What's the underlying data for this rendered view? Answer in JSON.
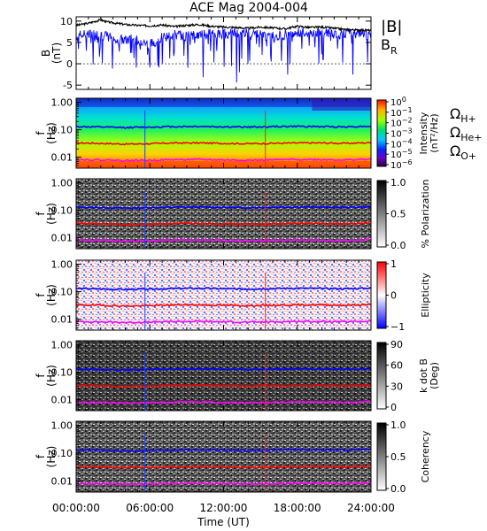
{
  "chart_data": [
    {
      "type": "line",
      "title": "ACE Mag 2004-004",
      "ylabel_lines": [
        "B",
        "(nT)"
      ],
      "ylim": [
        -6,
        11
      ],
      "yticks": [
        -5,
        0,
        5,
        10
      ],
      "xlim": [
        0,
        24
      ],
      "series": [
        {
          "name": "|B|",
          "color": "#000000",
          "x": [
            0,
            1,
            2,
            2.5,
            3,
            4,
            5,
            6,
            7,
            8,
            9,
            10,
            11,
            12,
            13,
            14,
            15,
            16,
            17,
            18,
            19,
            20,
            21,
            22,
            23,
            24
          ],
          "y": [
            9.0,
            9.5,
            10.3,
            9.8,
            9.6,
            9.2,
            9.0,
            8.9,
            9.1,
            8.7,
            9.0,
            9.2,
            8.8,
            8.6,
            8.5,
            8.3,
            8.6,
            8.4,
            8.2,
            8.8,
            8.5,
            8.6,
            8.3,
            8.0,
            7.9,
            7.8
          ]
        },
        {
          "name": "B",
          "subscript": "R",
          "color": "#0000ff",
          "x": [
            0,
            1,
            2,
            3,
            4,
            5,
            6,
            7,
            8,
            9,
            10,
            11,
            12,
            13,
            14,
            15,
            16,
            17,
            18,
            19,
            20,
            21,
            22,
            23,
            24
          ],
          "y": [
            6.5,
            7.0,
            6.8,
            6.0,
            5.5,
            5.8,
            4.5,
            6.2,
            6.8,
            6.5,
            6.7,
            7.0,
            7.1,
            7.2,
            7.3,
            6.8,
            6.5,
            6.9,
            7.2,
            7.4,
            7.3,
            7.0,
            7.2,
            7.0,
            6.9
          ]
        }
      ]
    },
    {
      "type": "heatmap",
      "ylabel_lines": [
        "f",
        "(Hz)"
      ],
      "yticks": [
        "1.00",
        "0.10",
        "0.01"
      ],
      "colorbar_label_lines": [
        "Intensity",
        "(nT²/Hz)"
      ],
      "colorbar_ticks": [
        {
          "base": "10",
          "exp": "0"
        },
        {
          "base": "10",
          "exp": "−1"
        },
        {
          "base": "10",
          "exp": "−2"
        },
        {
          "base": "10",
          "exp": "−3"
        },
        {
          "base": "10",
          "exp": "−4"
        },
        {
          "base": "10",
          "exp": "−5"
        },
        {
          "base": "10",
          "exp": "−6"
        }
      ],
      "colormap": "rainbow"
    },
    {
      "type": "heatmap",
      "ylabel_lines": [
        "f",
        "(Hz)"
      ],
      "yticks": [
        "1.00",
        "0.10",
        "0.01"
      ],
      "colorbar_label": "% Polarization",
      "colorbar_ticks": [
        "1.0",
        "0.5",
        "0.0"
      ],
      "colormap": "gray"
    },
    {
      "type": "heatmap",
      "ylabel_lines": [
        "f",
        "(Hz)"
      ],
      "yticks": [
        "1.00",
        "0.10",
        "0.01"
      ],
      "colorbar_label": "Ellipticity",
      "colorbar_ticks": [
        "1",
        "0",
        "−1"
      ],
      "colormap": "blue-white-red"
    },
    {
      "type": "heatmap",
      "ylabel_lines": [
        "f",
        "(Hz)"
      ],
      "yticks": [
        "1.00",
        "0.10",
        "0.01"
      ],
      "colorbar_label_lines": [
        "k dot B",
        "(Deg)"
      ],
      "colorbar_ticks": [
        "90",
        "60",
        "30",
        "0"
      ],
      "colormap": "gray"
    },
    {
      "type": "heatmap",
      "ylabel_lines": [
        "f",
        "(Hz)"
      ],
      "yticks": [
        "1.00",
        "0.10",
        "0.01"
      ],
      "colorbar_label": "Coherency",
      "colorbar_ticks": [
        "1.0",
        "0.5",
        "0.0"
      ],
      "colormap": "gray"
    }
  ],
  "gyrofrequency_lines": [
    {
      "symbol": "Ω",
      "subscript": "H+",
      "color": "#0000ff",
      "y_hz": [
        0.13,
        0.125,
        0.12,
        0.125,
        0.13,
        0.132,
        0.128,
        0.125,
        0.13,
        0.133,
        0.13,
        0.128,
        0.135
      ]
    },
    {
      "symbol": "Ω",
      "subscript": "He+",
      "color": "#ff0000",
      "y_hz": [
        0.033,
        0.032,
        0.03,
        0.031,
        0.033,
        0.033,
        0.032,
        0.031,
        0.032,
        0.033,
        0.033,
        0.032,
        0.034
      ]
    },
    {
      "symbol": "Ω",
      "subscript": "O+",
      "color": "#ff00ff",
      "y_hz": [
        0.0082,
        0.008,
        0.0076,
        0.0078,
        0.0082,
        0.0083,
        0.008,
        0.0078,
        0.008,
        0.0083,
        0.0082,
        0.008,
        0.0085
      ]
    }
  ],
  "x_axis": {
    "label": "Time (UT)",
    "ticks": [
      "00:00:00",
      "06:00:00",
      "12:00:00",
      "18:00:00",
      "24:00:00"
    ],
    "tick_hours": [
      0,
      6,
      12,
      18,
      24
    ]
  }
}
